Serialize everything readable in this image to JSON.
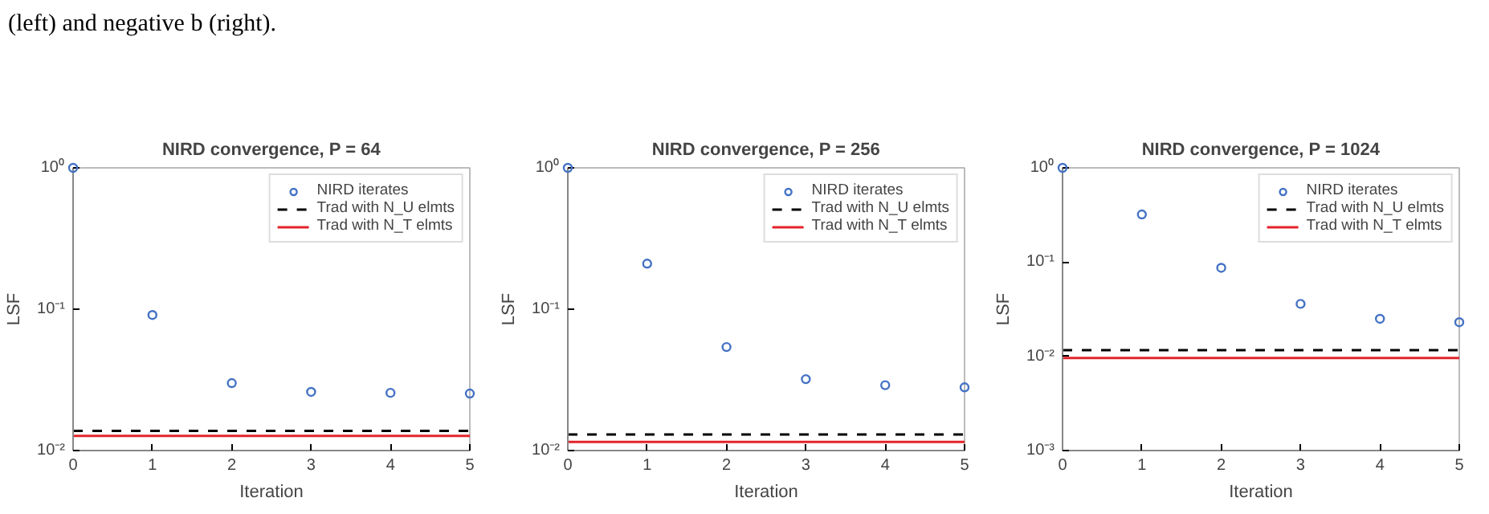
{
  "chart_data": [
    {
      "type": "scatter",
      "title": "NIRD convergence, P = 64",
      "xlabel": "Iteration",
      "ylabel": "LSF",
      "annotations": [
        "(left) and negative b (right)."
      ],
      "log": "y",
      "x": [
        0,
        1,
        2,
        3,
        4,
        5
      ],
      "xlim": [
        0,
        5
      ],
      "xticks": [
        0,
        1,
        2,
        3,
        4,
        5
      ],
      "ylim": [
        0.01,
        1
      ],
      "yticks": [
        {
          "value": 0.01,
          "label": "10⁻²"
        },
        {
          "value": 0.1,
          "label": "10⁻¹"
        },
        {
          "value": 1,
          "label": "10⁰"
        }
      ],
      "grid": false,
      "legend": "top right",
      "series": [
        {
          "name": "NIRD iterates",
          "color": "#4472c4",
          "marker": "circle",
          "values": [
            1,
            0.091,
            0.03,
            0.026,
            0.0256,
            0.0253
          ]
        }
      ],
      "ref_lines": [
        {
          "axis": "y",
          "value": 0.0138,
          "label": "Trad with N_U elmts",
          "color": "#000000",
          "line_style": "dashed"
        },
        {
          "axis": "y",
          "value": 0.0127,
          "label": "Trad with N_T elmts",
          "color": "#e3242b",
          "line_style": "solid"
        }
      ]
    },
    {
      "type": "scatter",
      "title": "NIRD convergence, P = 256",
      "xlabel": "Iteration",
      "ylabel": "LSF",
      "log": "y",
      "x": [
        0,
        1,
        2,
        3,
        4,
        5
      ],
      "xlim": [
        0,
        5
      ],
      "xticks": [
        0,
        1,
        2,
        3,
        4,
        5
      ],
      "ylim": [
        0.01,
        1
      ],
      "yticks": [
        {
          "value": 0.01,
          "label": "10⁻²"
        },
        {
          "value": 0.1,
          "label": "10⁻¹"
        },
        {
          "value": 1,
          "label": "10⁰"
        }
      ],
      "grid": false,
      "legend": "top right",
      "series": [
        {
          "name": "NIRD iterates",
          "color": "#4472c4",
          "marker": "circle",
          "values": [
            1,
            0.21,
            0.054,
            0.032,
            0.029,
            0.028
          ]
        }
      ],
      "ref_lines": [
        {
          "axis": "y",
          "value": 0.013,
          "label": "Trad with N_U elmts",
          "color": "#000000",
          "line_style": "dashed"
        },
        {
          "axis": "y",
          "value": 0.0115,
          "label": "Trad with N_T elmts",
          "color": "#e3242b",
          "line_style": "solid"
        }
      ]
    },
    {
      "type": "scatter",
      "title": "NIRD convergence, P = 1024",
      "xlabel": "Iteration",
      "ylabel": "LSF",
      "log": "y",
      "x": [
        0,
        1,
        2,
        3,
        4,
        5
      ],
      "xlim": [
        0,
        5
      ],
      "xticks": [
        0,
        1,
        2,
        3,
        4,
        5
      ],
      "ylim": [
        0.001,
        1
      ],
      "yticks": [
        {
          "value": 0.001,
          "label": "10⁻³"
        },
        {
          "value": 0.01,
          "label": "10⁻²"
        },
        {
          "value": 0.1,
          "label": "10⁻¹"
        },
        {
          "value": 1,
          "label": "10⁰"
        }
      ],
      "grid": false,
      "legend": "top right",
      "series": [
        {
          "name": "NIRD iterates",
          "color": "#4472c4",
          "marker": "circle",
          "values": [
            1,
            0.32,
            0.087,
            0.036,
            0.025,
            0.023
          ]
        }
      ],
      "ref_lines": [
        {
          "axis": "y",
          "value": 0.0116,
          "label": "Trad with N_U elmts",
          "color": "#000000",
          "line_style": "dashed"
        },
        {
          "axis": "y",
          "value": 0.0096,
          "label": "Trad with N_T elmts",
          "color": "#e3242b",
          "line_style": "solid"
        }
      ]
    }
  ]
}
